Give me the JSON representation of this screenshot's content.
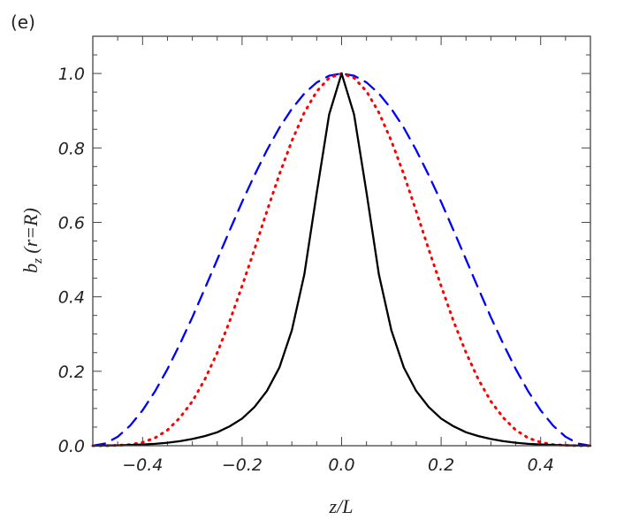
{
  "chart_data": {
    "type": "line",
    "panel_label": "(e)",
    "xlabel": "z/L",
    "ylabel": "b_z (r=R)",
    "ylabel_main": "b",
    "ylabel_sub": "z",
    "ylabel_rest": " (r=R)",
    "xlim": [
      -0.5,
      0.5
    ],
    "ylim": [
      0.0,
      1.1
    ],
    "xticks": [
      -0.4,
      -0.2,
      0.0,
      0.2,
      0.4
    ],
    "xtick_labels": [
      "−0.4",
      "−0.2",
      "0.0",
      "0.2",
      "0.4"
    ],
    "yticks": [
      0.0,
      0.2,
      0.4,
      0.6,
      0.8,
      1.0
    ],
    "ytick_labels": [
      "0.0",
      "0.2",
      "0.4",
      "0.6",
      "0.8",
      "1.0"
    ],
    "minor_tick_step": 0.05,
    "grid": false,
    "x": [
      -0.5,
      -0.475,
      -0.45,
      -0.425,
      -0.4,
      -0.375,
      -0.35,
      -0.325,
      -0.3,
      -0.275,
      -0.25,
      -0.225,
      -0.2,
      -0.175,
      -0.15,
      -0.125,
      -0.1,
      -0.075,
      -0.05,
      -0.025,
      0,
      0.025,
      0.05,
      0.075,
      0.1,
      0.125,
      0.15,
      0.175,
      0.2,
      0.225,
      0.25,
      0.275,
      0.3,
      0.325,
      0.35,
      0.375,
      0.4,
      0.425,
      0.45,
      0.475,
      0.5
    ],
    "series": [
      {
        "style": "solid",
        "color": "#000000",
        "values": [
          0,
          0.0005,
          0.001,
          0.002,
          0.003,
          0.005,
          0.008,
          0.012,
          0.018,
          0.026,
          0.036,
          0.052,
          0.073,
          0.104,
          0.147,
          0.21,
          0.31,
          0.46,
          0.68,
          0.89,
          1.0,
          0.89,
          0.68,
          0.46,
          0.31,
          0.21,
          0.147,
          0.104,
          0.073,
          0.052,
          0.036,
          0.026,
          0.018,
          0.012,
          0.008,
          0.005,
          0.003,
          0.002,
          0.001,
          0.0005,
          0
        ]
      },
      {
        "style": "dotted",
        "color": "#ff0000",
        "values": [
          0,
          0.0,
          0.001,
          0.003,
          0.009,
          0.021,
          0.042,
          0.075,
          0.119,
          0.178,
          0.25,
          0.334,
          0.429,
          0.528,
          0.63,
          0.729,
          0.819,
          0.895,
          0.952,
          0.988,
          1.0,
          0.988,
          0.952,
          0.895,
          0.819,
          0.729,
          0.63,
          0.528,
          0.429,
          0.334,
          0.25,
          0.178,
          0.119,
          0.075,
          0.042,
          0.021,
          0.009,
          0.003,
          0.001,
          0.0,
          0
        ]
      },
      {
        "style": "dashed",
        "color": "#0000ff",
        "values": [
          0,
          0.006,
          0.024,
          0.054,
          0.095,
          0.146,
          0.206,
          0.273,
          0.345,
          0.422,
          0.5,
          0.578,
          0.655,
          0.727,
          0.794,
          0.854,
          0.905,
          0.946,
          0.976,
          0.994,
          1.0,
          0.994,
          0.976,
          0.946,
          0.905,
          0.854,
          0.794,
          0.727,
          0.655,
          0.578,
          0.5,
          0.422,
          0.345,
          0.273,
          0.206,
          0.146,
          0.095,
          0.054,
          0.024,
          0.006,
          0
        ]
      }
    ]
  }
}
